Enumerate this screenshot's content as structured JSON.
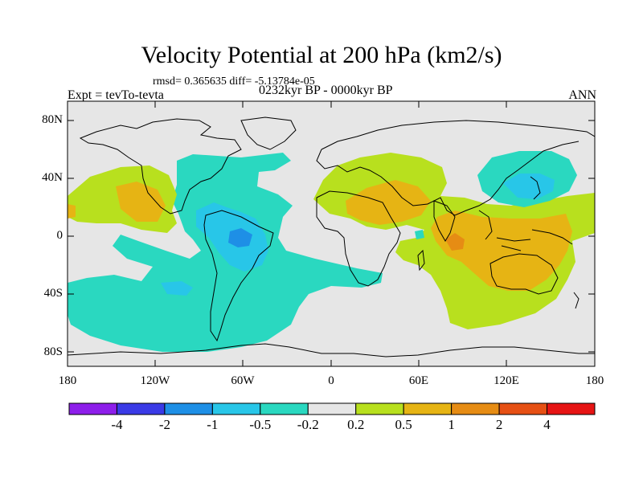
{
  "title": "Velocity Potential at 200 hPa (km2/s)",
  "stats": "rmsd= 0.365635 diff= -5.13784e-05",
  "left_label": "Expt = tevTo-tevta",
  "center_label": "0232kyr BP - 0000kyr BP",
  "right_label": "ANN",
  "lat_labels": [
    "80N",
    "40N",
    "0",
    "40S",
    "80S"
  ],
  "lon_labels": [
    "180",
    "120W",
    "60W",
    "0",
    "60E",
    "120E",
    "180"
  ],
  "colorbar": {
    "colors": [
      "#8d1eea",
      "#3a3ae6",
      "#1e8fe6",
      "#28c6e8",
      "#2ad8c0",
      "#e6e6e6",
      "#b8e01e",
      "#e6b414",
      "#e68c14",
      "#e65014",
      "#e61414"
    ],
    "labels": [
      "-4",
      "-2",
      "-1",
      "-0.5",
      "-0.2",
      "0.2",
      "0.5",
      "1",
      "2",
      "4"
    ]
  },
  "colors": {
    "land_outline": "#000000",
    "background": "#e6e6e6"
  }
}
